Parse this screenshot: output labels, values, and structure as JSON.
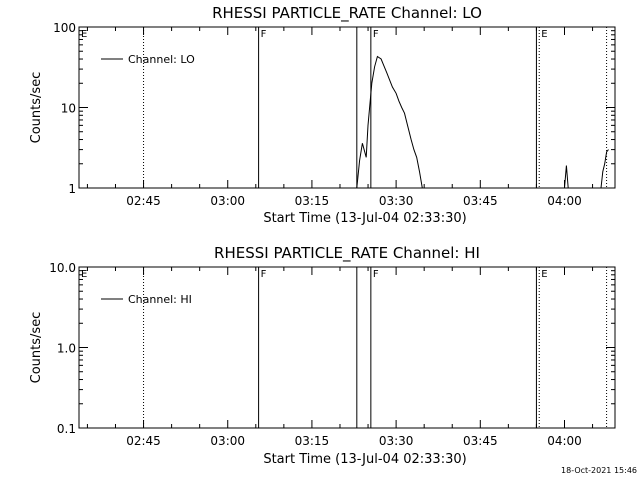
{
  "chart_data": [
    {
      "type": "line",
      "title": "RHESSI PARTICLE_RATE Channel: LO",
      "xlabel": "Start Time (13-Jul-04 02:33:30)",
      "ylabel": "Counts/sec",
      "y_scale": "log",
      "ylim": [
        1,
        100
      ],
      "xlim": [
        "02:33:30",
        "04:09:00"
      ],
      "y_ticks": [
        "1",
        "10",
        "100"
      ],
      "x_ticks": [
        "02:45",
        "03:00",
        "03:15",
        "03:30",
        "03:45",
        "04:00"
      ],
      "legend": {
        "entries": [
          "Channel: LO"
        ],
        "position": "top-left"
      },
      "grid": false,
      "markers": [
        {
          "label": "E",
          "time": "02:33:30",
          "style": "edge"
        },
        {
          "time": "02:45:00",
          "style": "dotted"
        },
        {
          "label": "F",
          "time": "03:05:30",
          "style": "solid"
        },
        {
          "time": "03:23:00",
          "style": "solid"
        },
        {
          "label": "F",
          "time": "03:25:30",
          "style": "solid"
        },
        {
          "time": "03:55:00",
          "style": "solid"
        },
        {
          "label": "E",
          "time": "03:55:30",
          "style": "dotted"
        },
        {
          "time": "04:07:30",
          "style": "dotted"
        }
      ],
      "series": [
        {
          "name": "Channel: LO",
          "segments": [
            [
              [
                "03:23:00",
                1.0
              ],
              [
                "03:23:30",
                2.2
              ],
              [
                "03:24:00",
                3.6
              ],
              [
                "03:24:40",
                2.4
              ],
              [
                "03:25:00",
                6.0
              ],
              [
                "03:25:40",
                20.0
              ],
              [
                "03:26:10",
                32.0
              ],
              [
                "03:26:40",
                43.0
              ],
              [
                "03:27:20",
                40.0
              ],
              [
                "03:27:50",
                33.0
              ],
              [
                "03:28:20",
                27.0
              ],
              [
                "03:28:50",
                22.0
              ],
              [
                "03:29:20",
                18.0
              ],
              [
                "03:30:00",
                15.0
              ],
              [
                "03:30:30",
                12.0
              ],
              [
                "03:31:00",
                10.0
              ],
              [
                "03:31:30",
                8.5
              ],
              [
                "03:32:10",
                5.5
              ],
              [
                "03:32:40",
                4.0
              ],
              [
                "03:33:10",
                3.0
              ],
              [
                "03:33:40",
                2.4
              ],
              [
                "03:34:10",
                1.6
              ],
              [
                "03:34:40",
                1.0
              ]
            ],
            [
              [
                "04:00:00",
                1.0
              ],
              [
                "04:00:20",
                1.9
              ],
              [
                "04:00:40",
                1.0
              ]
            ],
            [
              [
                "04:06:30",
                1.0
              ],
              [
                "04:06:50",
                1.6
              ],
              [
                "04:07:10",
                2.0
              ],
              [
                "04:07:30",
                2.8
              ],
              [
                "04:07:50",
                3.0
              ]
            ]
          ]
        }
      ]
    },
    {
      "type": "line",
      "title": "RHESSI PARTICLE_RATE Channel: HI",
      "xlabel": "Start Time (13-Jul-04 02:33:30)",
      "ylabel": "Counts/sec",
      "y_scale": "log",
      "ylim": [
        0.1,
        10
      ],
      "xlim": [
        "02:33:30",
        "04:09:00"
      ],
      "y_ticks": [
        "0.1",
        "1.0",
        "10.0"
      ],
      "x_ticks": [
        "02:45",
        "03:00",
        "03:15",
        "03:30",
        "03:45",
        "04:00"
      ],
      "legend": {
        "entries": [
          "Channel: HI"
        ],
        "position": "top-left"
      },
      "grid": false,
      "markers": [
        {
          "label": "E",
          "time": "02:33:30",
          "style": "edge"
        },
        {
          "time": "02:45:00",
          "style": "dotted"
        },
        {
          "label": "F",
          "time": "03:05:30",
          "style": "solid"
        },
        {
          "time": "03:23:00",
          "style": "solid"
        },
        {
          "label": "F",
          "time": "03:25:30",
          "style": "solid"
        },
        {
          "time": "03:55:00",
          "style": "solid"
        },
        {
          "label": "E",
          "time": "03:55:30",
          "style": "dotted"
        },
        {
          "time": "04:07:30",
          "style": "dotted"
        }
      ],
      "series": [
        {
          "name": "Channel: HI",
          "segments": []
        }
      ]
    }
  ],
  "footer": {
    "timestamp": "18-Oct-2021 15:46"
  }
}
